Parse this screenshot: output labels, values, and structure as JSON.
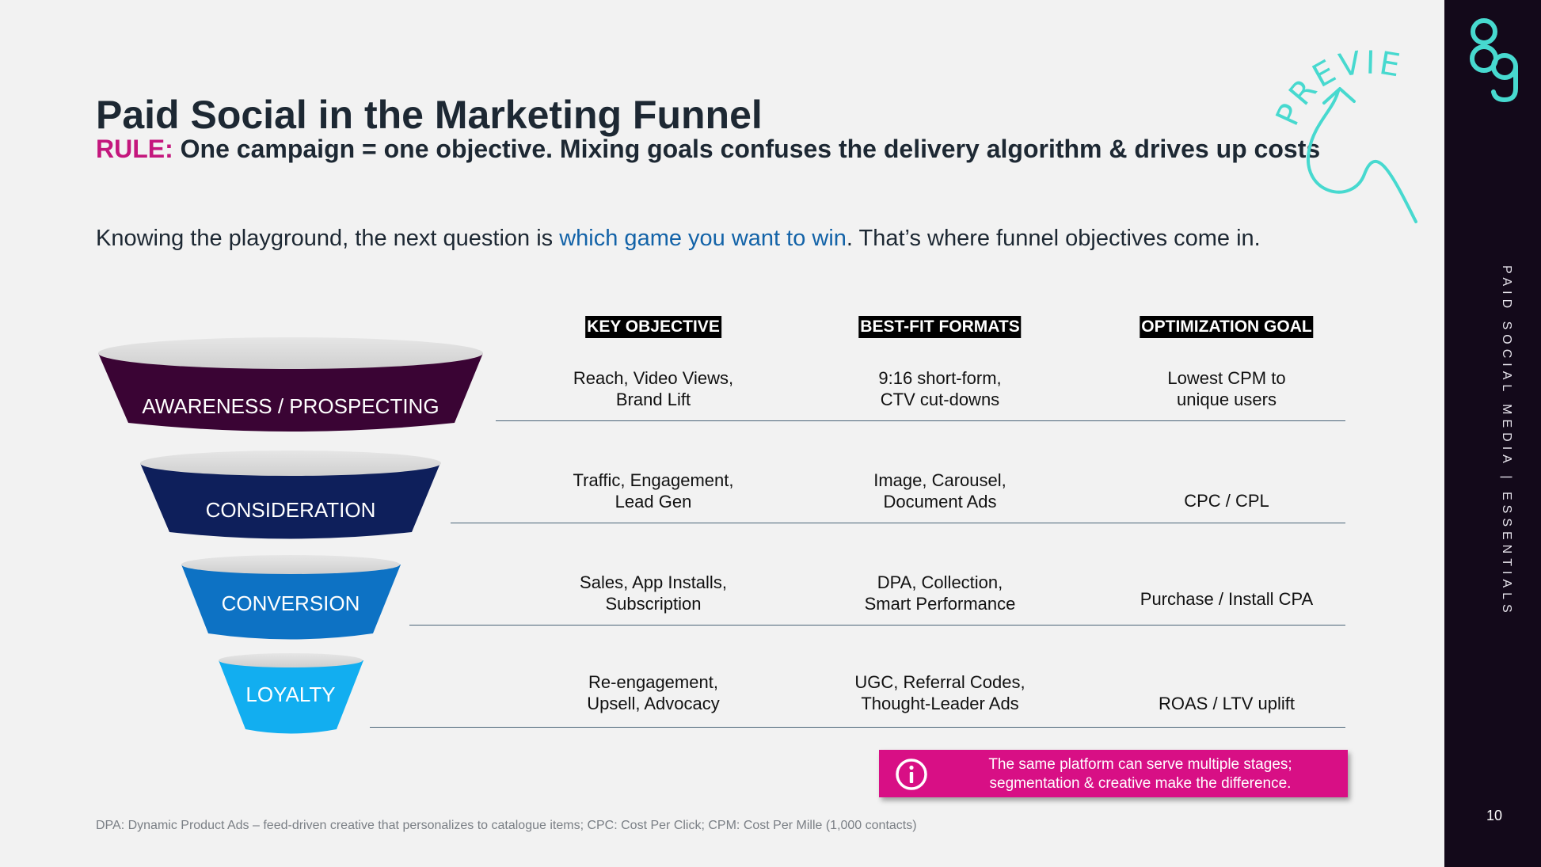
{
  "slide": {
    "title": "Paid Social in the Marketing Funnel",
    "rule_tag": "RULE:",
    "rule_text": " One campaign = one objective. Mixing goals confuses the delivery algorithm & drives up costs",
    "intro_before": "Knowing the playground, the next question is ",
    "intro_highlight": "which game you want to win",
    "intro_after": ". That’s where funnel objectives come in."
  },
  "stamp": {
    "text": "PREVIEW",
    "color": "#47d9cf"
  },
  "side_panel": {
    "label": "PAID SOCIAL MEDIA | ESSENTIALS",
    "page_number": "10"
  },
  "columns": [
    "KEY OBJECTIVE",
    "BEST-FIT FORMATS",
    "OPTIMIZATION GOAL"
  ],
  "stages": [
    {
      "name": "AWARENESS / PROSPECTING",
      "color": "#3a0434",
      "key_objective": [
        "Reach, Video Views,",
        "Brand Lift"
      ],
      "formats": [
        "9:16 short-form,",
        "CTV cut-downs"
      ],
      "goal": [
        "Lowest CPM to",
        "unique users"
      ]
    },
    {
      "name": "CONSIDERATION",
      "color": "#0e1f5b",
      "key_objective": [
        "Traffic, Engagement,",
        "Lead Gen"
      ],
      "formats": [
        "Image, Carousel,",
        "Document Ads"
      ],
      "goal": [
        "CPC / CPL"
      ]
    },
    {
      "name": "CONVERSION",
      "color": "#0d72c4",
      "key_objective": [
        "Sales, App Installs,",
        "Subscription"
      ],
      "formats": [
        "DPA, Collection,",
        "Smart Performance"
      ],
      "goal": [
        "Purchase / Install CPA"
      ]
    },
    {
      "name": "LOYALTY",
      "color": "#12aef0",
      "key_objective": [
        "Re-engagement,",
        "Upsell, Advocacy"
      ],
      "formats": [
        "UGC, Referral Codes,",
        "Thought-Leader Ads"
      ],
      "goal": [
        "ROAS / LTV uplift"
      ]
    }
  ],
  "callout": {
    "icon": "info-icon",
    "line1": "The same platform can serve multiple stages;",
    "line2": "segmentation & creative make the difference.",
    "color": "#d80f85"
  },
  "footnote": "DPA: Dynamic Product Ads – feed-driven creative that personalizes to catalogue items; CPC: Cost Per Click; CPM: Cost Per Mille (1,000 contacts)"
}
